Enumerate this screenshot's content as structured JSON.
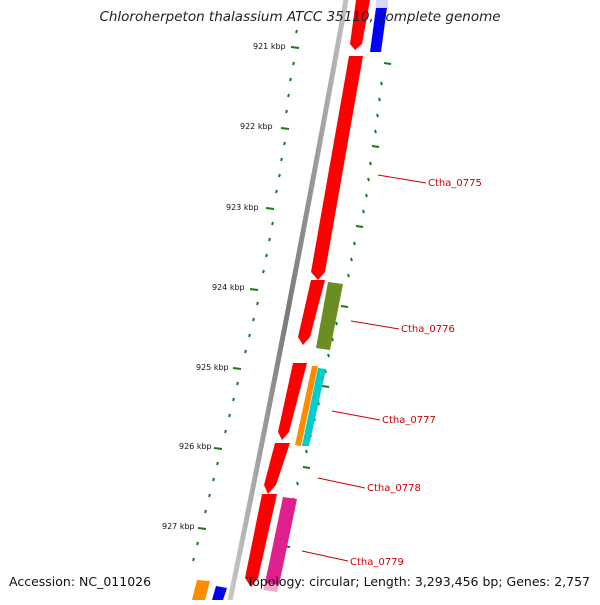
{
  "title": "Chloroherpeton thalassium ATCC 35110, complete genome",
  "footer": {
    "accession": "Accession: NC_011026",
    "topology": "Topology: circular; Length: 3,293,456 bp; Genes: 2,757"
  },
  "kbp_labels": [
    "921 kbp",
    "922 kbp",
    "923 kbp",
    "924 kbp",
    "925 kbp",
    "926 kbp",
    "927 kbp"
  ],
  "gene_labels": [
    "Ctha_0775",
    "Ctha_0776",
    "Ctha_0777",
    "Ctha_0778",
    "Ctha_0779"
  ],
  "colors": {
    "forward_cds": "#ff0000",
    "blue": "#0000ff",
    "olive": "#6b8e23",
    "orange": "#ff8c00",
    "cyan": "#00cccc",
    "magenta": "#e0208c",
    "pink": "#f4a8c8",
    "tick": "#1a7a1a",
    "backbone": "#808080",
    "label": "#cc0000"
  }
}
